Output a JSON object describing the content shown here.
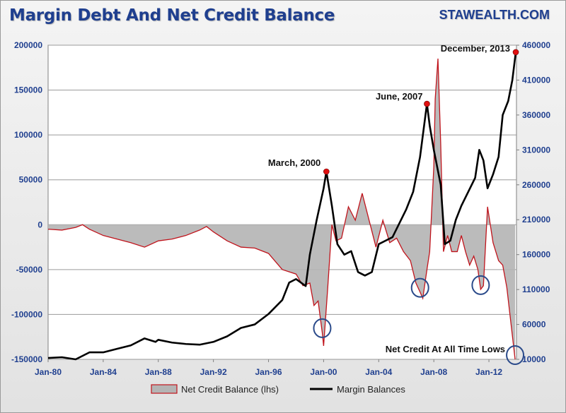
{
  "header": {
    "title": "Margin Debt And Net Credit Balance",
    "brand": "STAWEALTH.COM"
  },
  "chart_data": {
    "type": "line",
    "title": "Margin Debt And Net Credit Balance",
    "x_tick_labels": [
      "Jan-80",
      "Jan-84",
      "Jan-88",
      "Jan-92",
      "Jan-96",
      "Jan-00",
      "Jan-04",
      "Jan-08",
      "Jan-12"
    ],
    "x_range": [
      1980,
      2014
    ],
    "y_left": {
      "ticks": [
        "200000",
        "150000",
        "100000",
        "50000",
        "0",
        "-50000",
        "-100000",
        "-150000"
      ],
      "range": [
        -150000,
        200000
      ]
    },
    "y_right": {
      "ticks": [
        "460000",
        "410000",
        "360000",
        "310000",
        "260000",
        "210000",
        "160000",
        "110000",
        "60000",
        "10000"
      ],
      "range": [
        10000,
        460000
      ]
    },
    "grid": "horizontal",
    "legend_position": "bottom",
    "colors": {
      "net_credit": "#c0141c",
      "net_credit_fill": "#b4b4b4",
      "margin": "#000000",
      "circle": "#2a4a8a",
      "dot": "#e01010"
    },
    "series": [
      {
        "name": "Net Credit Balance (lhs)",
        "axis": "left",
        "x": [
          1980,
          1981,
          1982,
          1982.5,
          1983,
          1984,
          1985,
          1986,
          1987,
          1988,
          1989,
          1990,
          1991,
          1991.5,
          1992,
          1993,
          1994,
          1995,
          1996,
          1997,
          1998,
          1998.5,
          1999,
          1999.3,
          1999.6,
          1999.9,
          2000,
          2000.3,
          2000.6,
          2000.9,
          2001.3,
          2001.8,
          2002.3,
          2002.8,
          2003.3,
          2003.8,
          2004.3,
          2004.8,
          2005.3,
          2005.8,
          2006.3,
          2006.7,
          2007.0,
          2007.2,
          2007.5,
          2007.7,
          2008.0,
          2008.1,
          2008.3,
          2008.5,
          2008.7,
          2009.0,
          2009.3,
          2009.7,
          2010.0,
          2010.3,
          2010.6,
          2010.9,
          2011.2,
          2011.4,
          2011.6,
          2011.9,
          2012.3,
          2012.7,
          2013.0,
          2013.3,
          2013.6,
          2013.9
        ],
        "y": [
          -5000,
          -6000,
          -3000,
          0,
          -5000,
          -12000,
          -16000,
          -20000,
          -25000,
          -18000,
          -16000,
          -12000,
          -6000,
          -2000,
          -8000,
          -18000,
          -25000,
          -26000,
          -32000,
          -50000,
          -55000,
          -68000,
          -65000,
          -90000,
          -85000,
          -120000,
          -135000,
          -70000,
          0,
          -18000,
          -15000,
          20000,
          5000,
          35000,
          5000,
          -25000,
          5000,
          -20000,
          -15000,
          -30000,
          -40000,
          -65000,
          -75000,
          -82000,
          -50000,
          -30000,
          65000,
          140000,
          185000,
          90000,
          -30000,
          -12000,
          -30000,
          -30000,
          -12000,
          -30000,
          -45000,
          -35000,
          -50000,
          -72000,
          -68000,
          20000,
          -20000,
          -40000,
          -45000,
          -70000,
          -110000,
          -150000
        ]
      },
      {
        "name": "Margin Balances",
        "axis": "right",
        "x": [
          1980,
          1981,
          1982,
          1983,
          1984,
          1985,
          1986,
          1987,
          1987.8,
          1988,
          1989,
          1990,
          1991,
          1992,
          1993,
          1994,
          1995,
          1996,
          1997,
          1997.5,
          1998,
          1998.7,
          1999,
          1999.5,
          2000,
          2000.2,
          2000.6,
          2001,
          2001.5,
          2002,
          2002.5,
          2003,
          2003.5,
          2004,
          2004.5,
          2005,
          2005.5,
          2006,
          2006.5,
          2007,
          2007.5,
          2007.7,
          2008,
          2008.5,
          2008.8,
          2009.2,
          2009.6,
          2010,
          2010.5,
          2011,
          2011.3,
          2011.6,
          2011.9,
          2012.3,
          2012.7,
          2013,
          2013.4,
          2013.7,
          2013.95
        ],
        "y": [
          12000,
          13000,
          10000,
          20000,
          20000,
          25000,
          30000,
          40000,
          35000,
          38000,
          34000,
          32000,
          31000,
          35000,
          43000,
          55000,
          60000,
          75000,
          95000,
          120000,
          125000,
          115000,
          160000,
          210000,
          255000,
          279000,
          230000,
          175000,
          160000,
          165000,
          135000,
          130000,
          135000,
          175000,
          180000,
          185000,
          205000,
          225000,
          250000,
          300000,
          376000,
          345000,
          310000,
          260000,
          175000,
          180000,
          210000,
          230000,
          250000,
          270000,
          310000,
          295000,
          255000,
          275000,
          300000,
          360000,
          380000,
          410000,
          450000
        ]
      }
    ],
    "annotations": [
      {
        "text": "March, 2000",
        "x": 2000.2,
        "y_right": 279000
      },
      {
        "text": "June, 2007",
        "x": 2007.5,
        "y_right": 376000
      },
      {
        "text": "December, 2013",
        "x": 2013.95,
        "y_right": 450000
      },
      {
        "text": "Net Credit At All Time Lows",
        "x": 2013.9,
        "y_left": -150000
      }
    ],
    "circled_lows": [
      {
        "x": 1999.9,
        "y_left": -120000
      },
      {
        "x": 2007.0,
        "y_left": -75000
      },
      {
        "x": 2011.4,
        "y_left": -72000
      },
      {
        "x": 2013.9,
        "y_left": -150000
      }
    ]
  }
}
